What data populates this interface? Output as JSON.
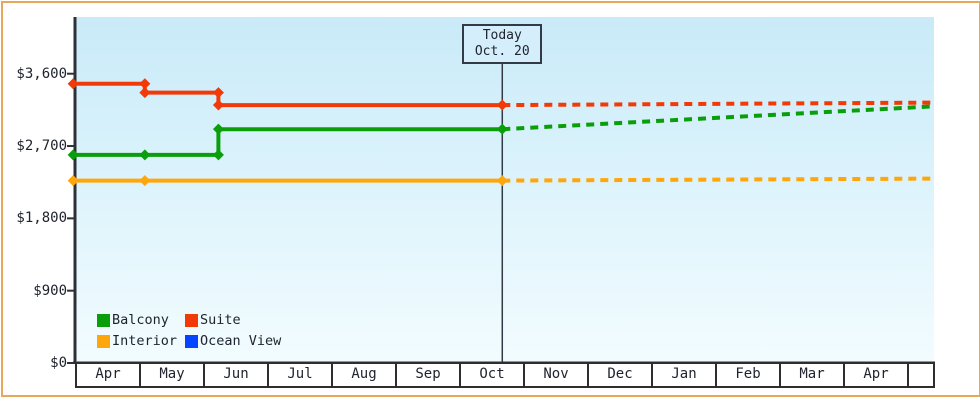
{
  "frame": {
    "border_color": "#e9a75c"
  },
  "chart_data": {
    "type": "line",
    "title": "",
    "description": "Cabin price history by category with dotted price forecast after today",
    "x_axis": {
      "month_labels": [
        "Apr",
        "May",
        "Jun",
        "Jul",
        "Aug",
        "Sep",
        "Oct",
        "Nov",
        "Dec",
        "Jan",
        "Feb",
        "Mar",
        "Apr",
        ""
      ]
    },
    "y_axis": {
      "tick_labels": [
        "$3,600",
        "$2,700",
        "$1,800",
        "$900",
        "$0"
      ],
      "tick_values": [
        3600,
        2700,
        1800,
        900,
        0
      ],
      "ylim": [
        0,
        4300
      ],
      "grid": false
    },
    "today": {
      "label": "Today",
      "date": "Oct. 20",
      "month_position": 6.645
    },
    "x_end_month_position": 13.4,
    "legend": [
      {
        "label": "Balcony",
        "color": "#0a9e0a"
      },
      {
        "label": "Suite",
        "color": "#f23a08"
      },
      {
        "label": "Interior",
        "color": "#ffa60a"
      },
      {
        "label": "Ocean View",
        "color": "#0545ff"
      }
    ],
    "series": [
      {
        "name": "Interior",
        "color": "#ffa60a",
        "history": [
          [
            -0.06,
            2270
          ],
          [
            1.06,
            2270
          ],
          [
            6.645,
            2270
          ]
        ],
        "markers": [
          [
            -0.06,
            2270
          ],
          [
            1.06,
            2270
          ],
          [
            6.645,
            2270
          ]
        ],
        "forecast": [
          [
            6.645,
            2270
          ],
          [
            13.4,
            2295
          ]
        ]
      },
      {
        "name": "Balcony",
        "color": "#0a9e0a",
        "history": [
          [
            -0.06,
            2590
          ],
          [
            1.06,
            2590
          ],
          [
            2.21,
            2590
          ],
          [
            2.21,
            2910
          ],
          [
            6.645,
            2910
          ]
        ],
        "markers": [
          [
            -0.06,
            2590
          ],
          [
            1.06,
            2590
          ],
          [
            2.21,
            2590
          ],
          [
            2.21,
            2910
          ],
          [
            6.645,
            2910
          ]
        ],
        "forecast": [
          [
            6.645,
            2910
          ],
          [
            13.4,
            3195
          ]
        ]
      },
      {
        "name": "Suite",
        "color": "#f23a08",
        "history": [
          [
            -0.06,
            3475
          ],
          [
            1.06,
            3475
          ],
          [
            1.06,
            3365
          ],
          [
            2.21,
            3365
          ],
          [
            2.21,
            3210
          ],
          [
            6.645,
            3210
          ]
        ],
        "markers": [
          [
            -0.06,
            3475
          ],
          [
            1.06,
            3475
          ],
          [
            1.06,
            3365
          ],
          [
            2.21,
            3365
          ],
          [
            2.21,
            3210
          ],
          [
            6.645,
            3210
          ]
        ],
        "forecast": [
          [
            6.645,
            3210
          ],
          [
            13.4,
            3240
          ]
        ]
      },
      {
        "name": "Ocean View",
        "color": "#0545ff",
        "history": [],
        "markers": [],
        "forecast": []
      }
    ]
  }
}
